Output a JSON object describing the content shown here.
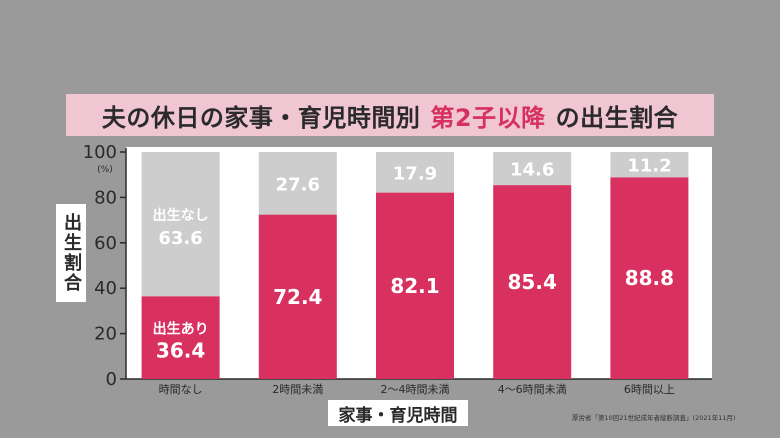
{
  "title": {
    "prefix": "夫の休日の家事・育児時間別",
    "highlight": "第2子以降",
    "suffix": "の出生割合"
  },
  "colors": {
    "birth_yes": "#d8315f",
    "birth_no": "#cdcdcd",
    "highlight": "#d6305f"
  },
  "chart_data": {
    "type": "bar",
    "stacked": true,
    "categories": [
      "時間なし",
      "2時間未満",
      "2～4時間未満",
      "4～6時間未満",
      "6時間以上"
    ],
    "series": [
      {
        "name": "出生あり",
        "values": [
          36.4,
          72.4,
          82.1,
          85.4,
          88.8
        ]
      },
      {
        "name": "出生なし",
        "values": [
          63.6,
          27.6,
          17.9,
          14.6,
          11.2
        ]
      }
    ],
    "xlabel": "家事・育児時間",
    "ylabel": "出生割合",
    "yunit": "(%)",
    "ylim": [
      0,
      100
    ],
    "yticks": [
      "0",
      "20",
      "40",
      "60",
      "80",
      "100"
    ],
    "annotations": {
      "birth_yes_label": "出生あり",
      "birth_no_label": "出生なし"
    }
  },
  "source": "厚労省「第10回21世紀成年者縦断調査」(2021年11月)"
}
